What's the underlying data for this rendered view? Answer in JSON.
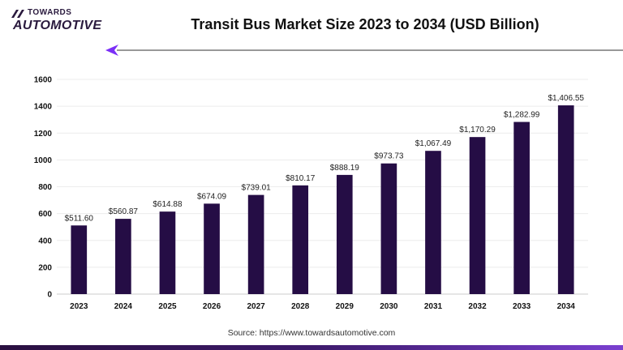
{
  "brand": {
    "line1": "TOWARDS",
    "line2": "AUTOMOTIVE",
    "colors": {
      "primary": "#2a1a3e",
      "accent": "#7b2ff7"
    }
  },
  "header": {
    "title": "Transit Bus Market Size 2023 to 2034 (USD Billion)",
    "arrow_icon": "arrow-left-icon"
  },
  "chart_data": {
    "type": "bar",
    "title": "Transit Bus Market Size 2023 to 2034 (USD Billion)",
    "xlabel": "",
    "ylabel": "",
    "categories": [
      "2023",
      "2024",
      "2025",
      "2026",
      "2027",
      "2028",
      "2029",
      "2030",
      "2031",
      "2032",
      "2033",
      "2034"
    ],
    "values": [
      511.6,
      560.87,
      614.88,
      674.09,
      739.01,
      810.17,
      888.19,
      973.73,
      1067.49,
      1170.29,
      1282.99,
      1406.55
    ],
    "data_labels": [
      "$511.60",
      "$560.87",
      "$614.88",
      "$674.09",
      "$739.01",
      "$810.17",
      "$888.19",
      "$973.73",
      "$1,067.49",
      "$1,170.29",
      "$1,282.99",
      "$1,406.55"
    ],
    "ylim": [
      0,
      1600
    ],
    "yticks": [
      0,
      200,
      400,
      600,
      800,
      1000,
      1200,
      1400,
      1600
    ],
    "grid": true,
    "legend": "none",
    "bar_color": "#250d45"
  },
  "footer": {
    "source": "Source: https://www.towardsautomotive.com"
  }
}
